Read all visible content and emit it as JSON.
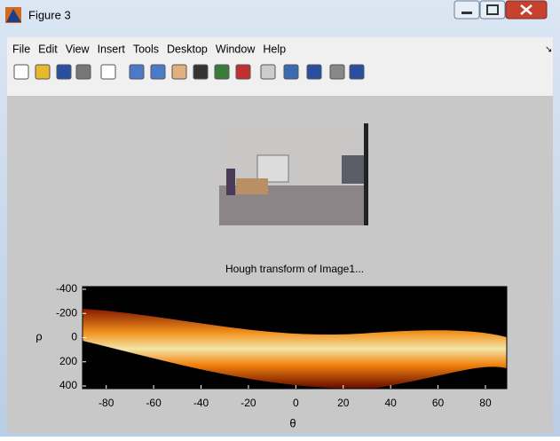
{
  "window": {
    "title": "Figure 3"
  },
  "menu": [
    "File",
    "Edit",
    "View",
    "Insert",
    "Tools",
    "Desktop",
    "Window",
    "Help"
  ],
  "chart_data": {
    "type": "heatmap",
    "title": "Hough transform of Image1...",
    "xlabel": "θ",
    "ylabel": "ρ",
    "xlim": [
      -90,
      89
    ],
    "xticks": [
      -80,
      -60,
      -40,
      -20,
      0,
      20,
      40,
      60,
      80
    ],
    "ylim": [
      -422,
      422
    ],
    "yticks": [
      -400,
      -200,
      0,
      200,
      400
    ],
    "y_reversed": true
  }
}
